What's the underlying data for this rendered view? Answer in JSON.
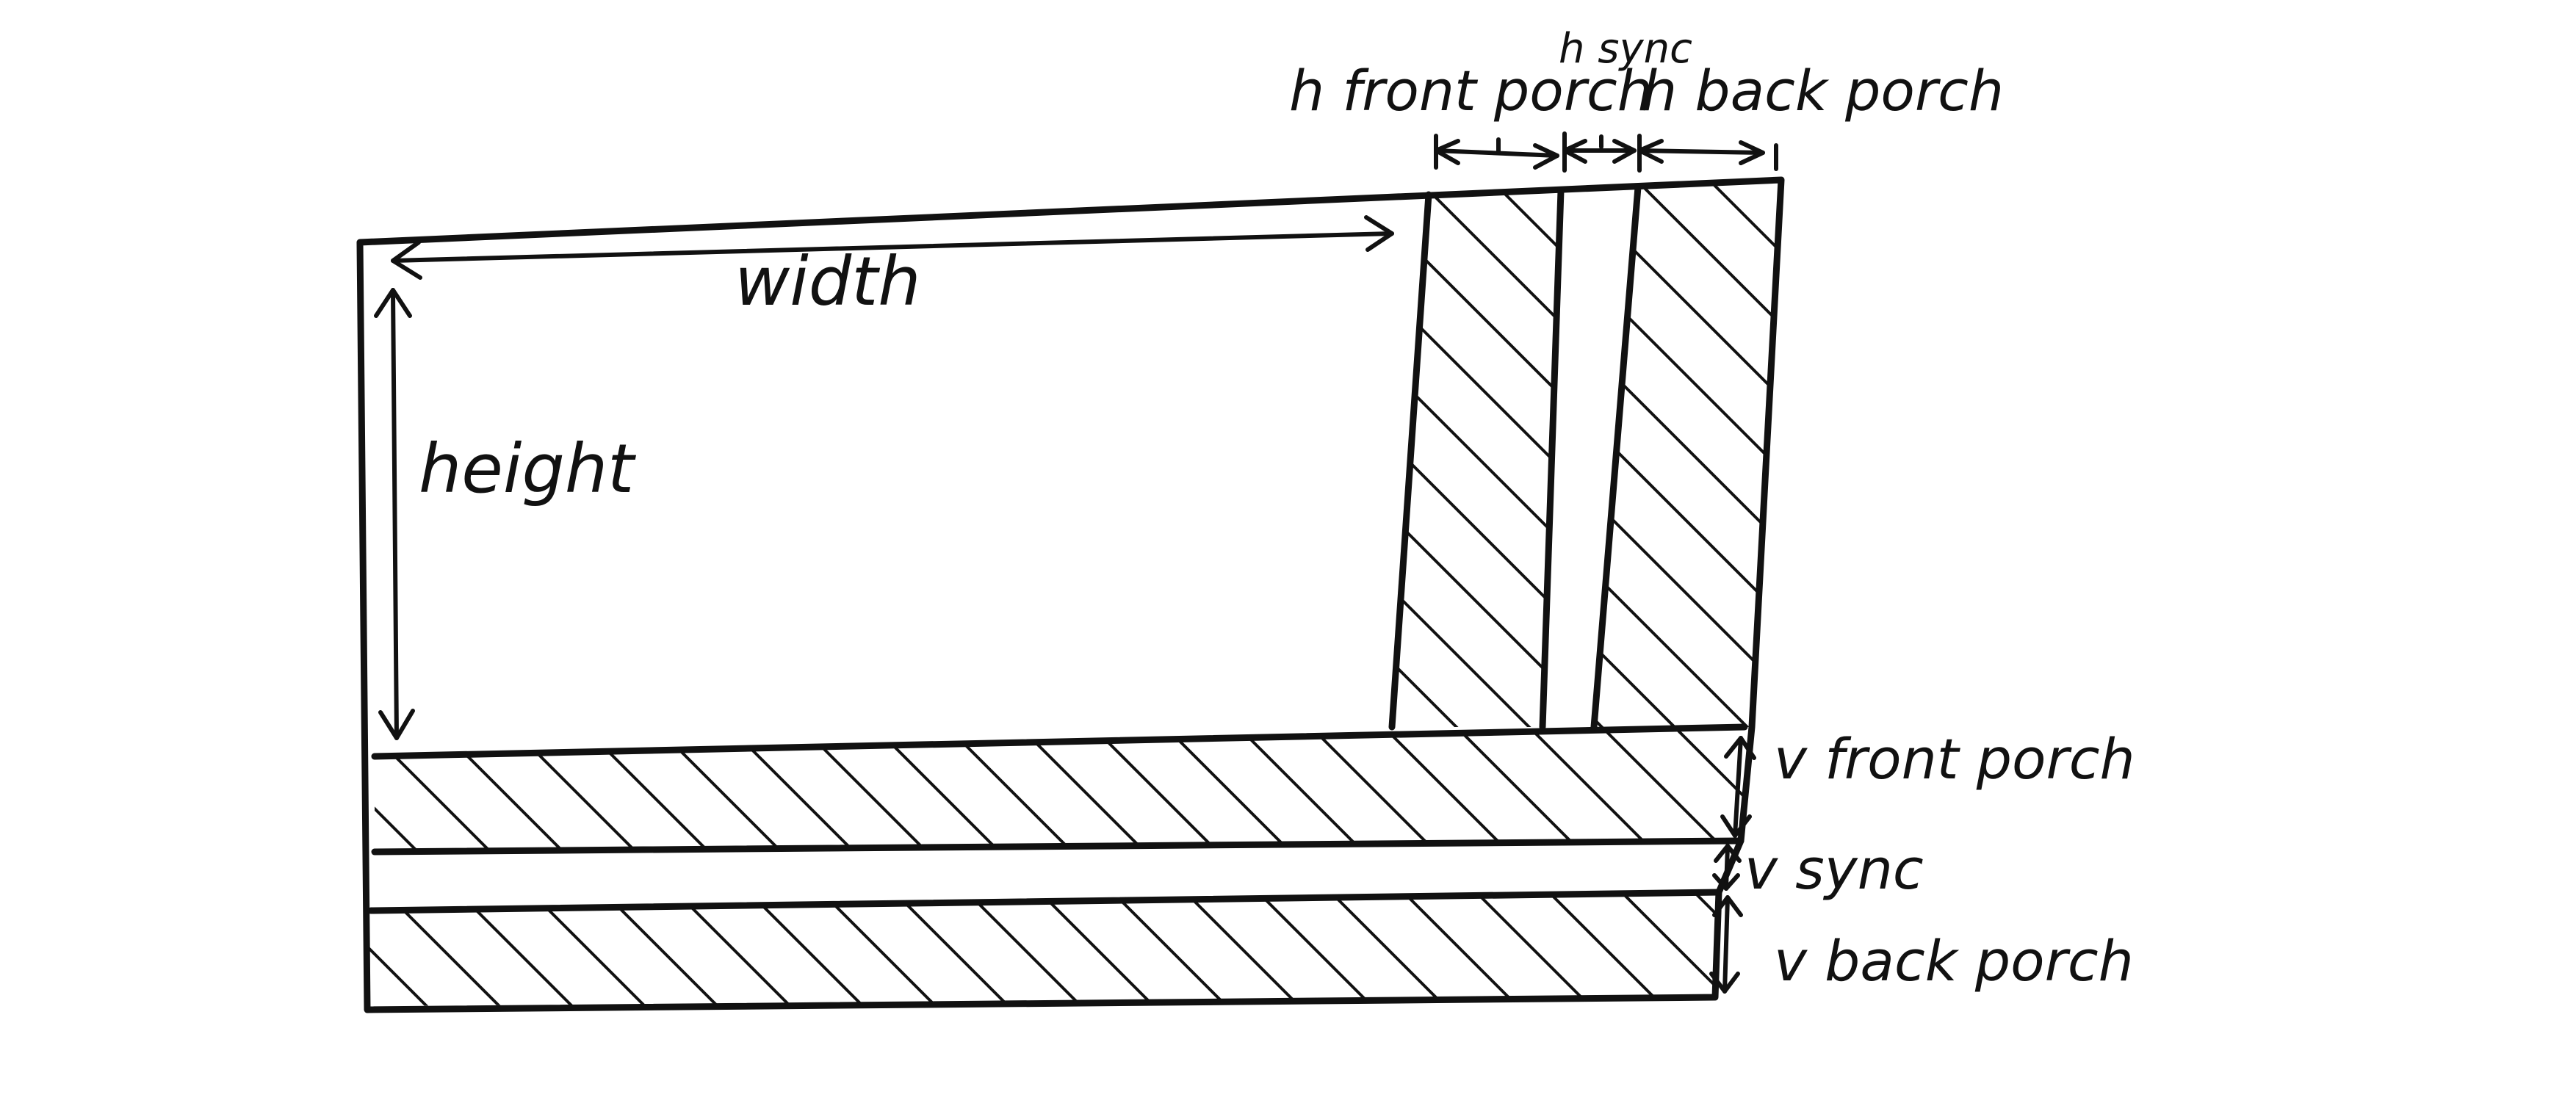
{
  "diagram": {
    "labels": {
      "width": "width",
      "height": "height",
      "h_front_porch": "h front porch",
      "h_sync": "h sync",
      "h_back_porch": "h back porch",
      "v_front_porch": "v front porch",
      "v_sync": "v sync",
      "v_back_porch": "v back porch"
    },
    "colors": {
      "ink": "#111111",
      "paper": "#ffffff"
    }
  }
}
